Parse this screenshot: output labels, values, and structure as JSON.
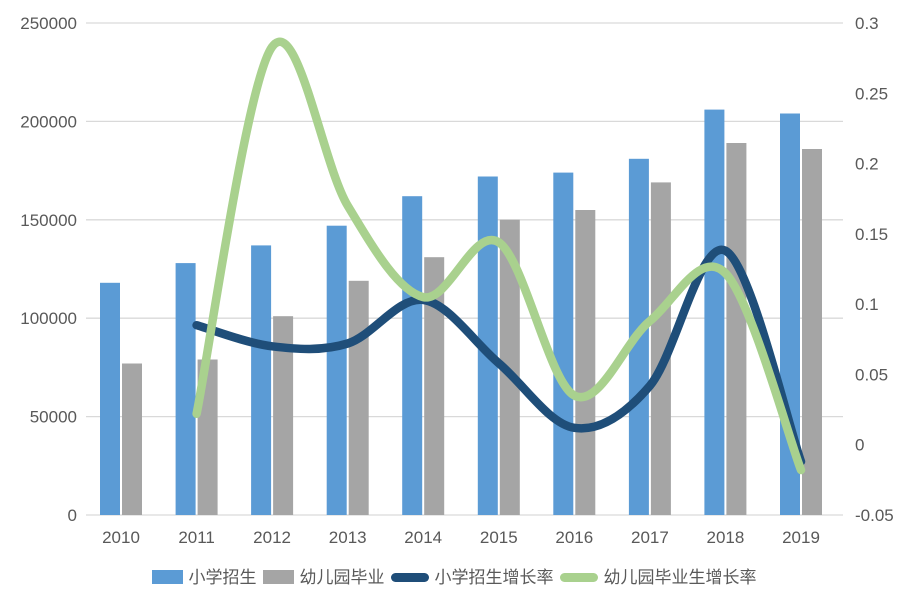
{
  "chart_data": {
    "type": "combo-bar-line",
    "title": "",
    "categories": [
      "2010",
      "2011",
      "2012",
      "2013",
      "2014",
      "2015",
      "2016",
      "2017",
      "2018",
      "2019"
    ],
    "bar_series": [
      {
        "key": "primary-enrollment",
        "name": "小学招生",
        "color": "#5B9BD5",
        "axis": "left",
        "values": [
          118000,
          128000,
          137000,
          147000,
          162000,
          172000,
          174000,
          181000,
          206000,
          204000
        ]
      },
      {
        "key": "kindergarten-graduates",
        "name": "幼儿园毕业",
        "color": "#A5A5A5",
        "axis": "left",
        "values": [
          77000,
          79000,
          101000,
          119000,
          131000,
          150000,
          155000,
          169000,
          189000,
          186000
        ]
      }
    ],
    "line_series": [
      {
        "key": "primary-enrollment-growth-rate",
        "name": "小学招生增长率",
        "color": "#1F4E79",
        "axis": "right",
        "values": [
          null,
          0.085,
          0.07,
          0.072,
          0.103,
          0.058,
          0.012,
          0.042,
          0.138,
          -0.012
        ]
      },
      {
        "key": "kindergarten-graduates-growth-rate",
        "name": "幼儿园毕业生增长率",
        "color": "#A9D18E",
        "axis": "right",
        "values": [
          null,
          0.022,
          0.283,
          0.17,
          0.105,
          0.144,
          0.035,
          0.088,
          0.122,
          -0.018
        ]
      }
    ],
    "left_axis": {
      "min": 0,
      "max": 250000,
      "step": 50000,
      "tick_labels": [
        "0",
        "50000",
        "100000",
        "150000",
        "200000",
        "250000"
      ]
    },
    "right_axis": {
      "min": -0.05,
      "max": 0.3,
      "step": 0.05,
      "tick_labels": [
        "-0.05",
        "0",
        "0.05",
        "0.1",
        "0.15",
        "0.2",
        "0.25",
        "0.3"
      ]
    },
    "grid": true,
    "legend_position": "bottom"
  },
  "colors": {
    "background": "#FFFFFF",
    "gridline": "#D9D9D9",
    "axis_text": "#595959"
  }
}
